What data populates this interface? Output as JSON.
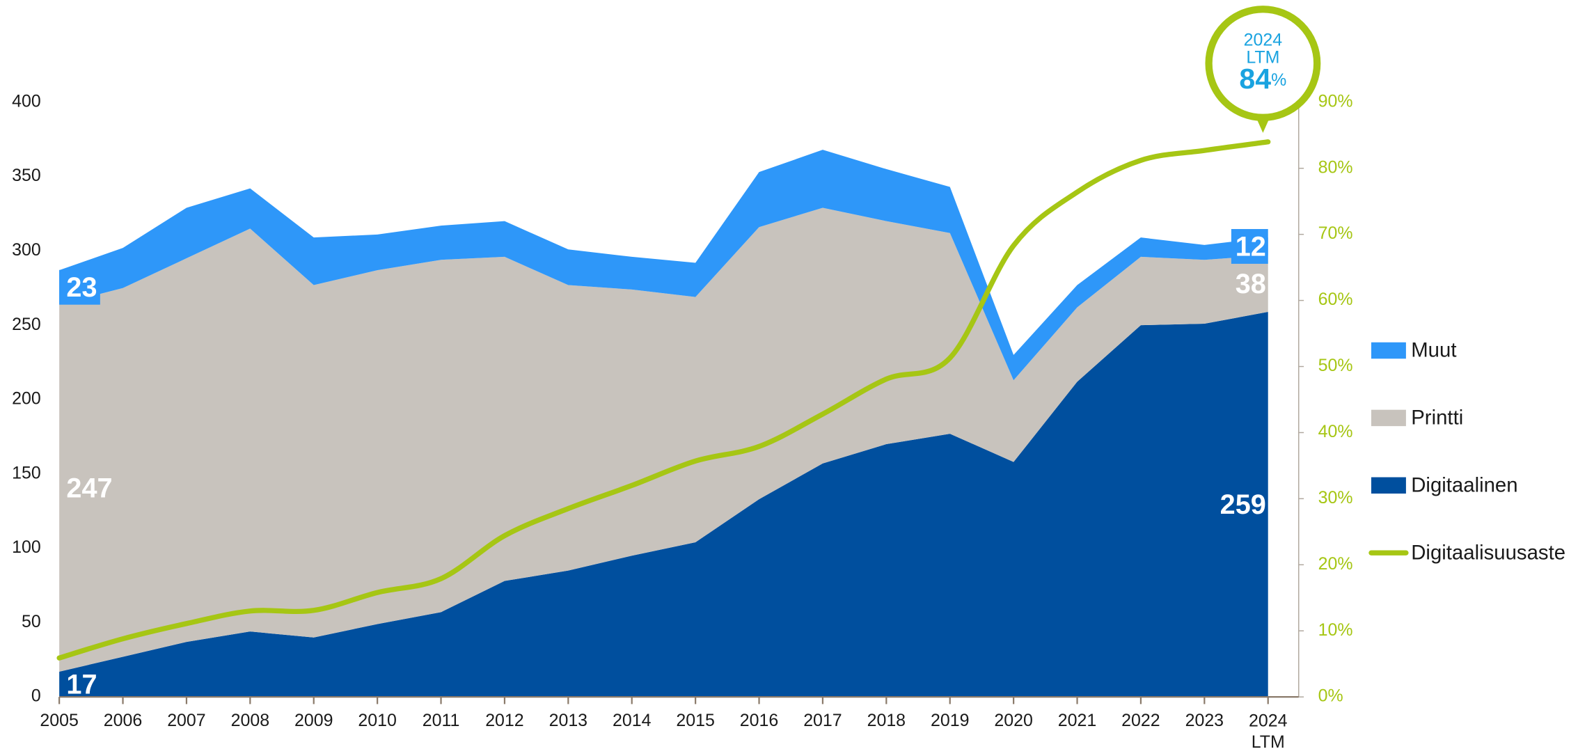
{
  "chart_data": {
    "type": "stacked-area-line",
    "categories": [
      "2005",
      "2006",
      "2007",
      "2008",
      "2009",
      "2010",
      "2011",
      "2012",
      "2013",
      "2014",
      "2015",
      "2016",
      "2017",
      "2018",
      "2019",
      "2020",
      "2021",
      "2022",
      "2023",
      "2024 LTM"
    ],
    "series": [
      {
        "name": "Digitaalinen",
        "color": "#004f9e",
        "values": [
          17,
          27,
          37,
          44,
          40,
          49,
          57,
          78,
          85,
          95,
          104,
          133,
          157,
          170,
          177,
          158,
          212,
          250,
          251,
          259
        ]
      },
      {
        "name": "Printti",
        "color": "#c8c3bd",
        "values": [
          247,
          248,
          258,
          271,
          237,
          238,
          237,
          218,
          192,
          179,
          165,
          183,
          172,
          150,
          135,
          55,
          50,
          46,
          43,
          38
        ]
      },
      {
        "name": "Muut",
        "color": "#2e97f9",
        "values": [
          23,
          27,
          34,
          27,
          32,
          24,
          23,
          24,
          24,
          22,
          23,
          37,
          39,
          35,
          31,
          17,
          15,
          13,
          10,
          12
        ]
      },
      {
        "name": "Digitaalisuusaste",
        "color": "#a6c614",
        "axis": "y2",
        "values": [
          5.9,
          8.8,
          11.1,
          13,
          13.1,
          15.8,
          17.9,
          24.4,
          28.5,
          32,
          35.7,
          37.9,
          42.8,
          48.1,
          51.3,
          68.3,
          76.4,
          81.2,
          82.7,
          84
        ]
      }
    ],
    "ylim": [
      0,
      400
    ],
    "yticks": [
      0,
      50,
      100,
      150,
      200,
      250,
      300,
      350,
      400
    ],
    "y2lim": [
      0,
      90
    ],
    "y2ticks": [
      {
        "value": 0,
        "label": "0%"
      },
      {
        "value": 10,
        "label": "10%"
      },
      {
        "value": 20,
        "label": "20%"
      },
      {
        "value": 30,
        "label": "30%"
      },
      {
        "value": 40,
        "label": "40%"
      },
      {
        "value": 50,
        "label": "50%"
      },
      {
        "value": 60,
        "label": "60%"
      },
      {
        "value": 70,
        "label": "70%"
      },
      {
        "value": 80,
        "label": "80%"
      },
      {
        "value": 90,
        "label": "90%"
      }
    ],
    "callout": {
      "lines": [
        "2024",
        "LTM"
      ],
      "value": 84,
      "unit": "%"
    },
    "legend": "right"
  }
}
